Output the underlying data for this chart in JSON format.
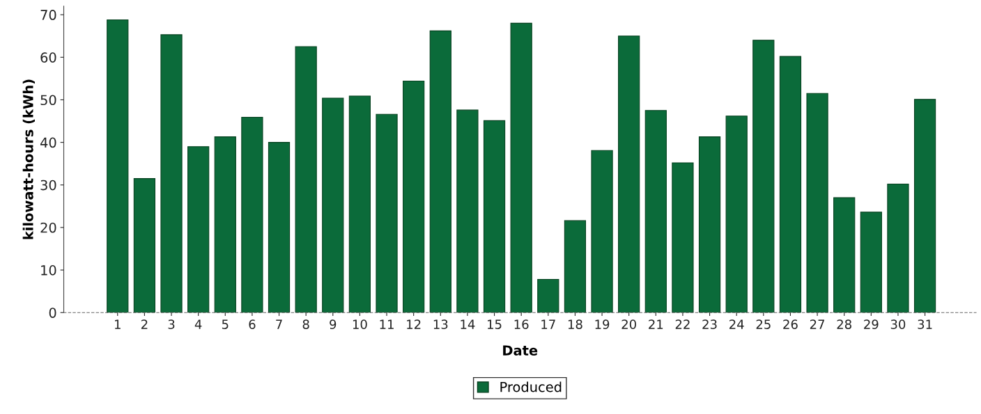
{
  "chart_data": {
    "type": "bar",
    "xlabel": "Date",
    "ylabel": "kilowatt-hours (kWh)",
    "categories": [
      "1",
      "2",
      "3",
      "4",
      "5",
      "6",
      "7",
      "8",
      "9",
      "10",
      "11",
      "12",
      "13",
      "14",
      "15",
      "16",
      "17",
      "18",
      "19",
      "20",
      "21",
      "22",
      "23",
      "24",
      "25",
      "26",
      "27",
      "28",
      "29",
      "30",
      "31"
    ],
    "series": [
      {
        "name": "Produced",
        "color": "#0b6b3a",
        "values": [
          68.8,
          31.5,
          65.3,
          39.0,
          41.3,
          45.9,
          40.0,
          62.5,
          50.4,
          50.9,
          46.6,
          54.4,
          66.2,
          47.6,
          45.1,
          68.0,
          7.8,
          21.6,
          38.1,
          65.0,
          47.5,
          35.2,
          41.3,
          46.2,
          64.0,
          60.2,
          51.5,
          27.0,
          23.6,
          30.2,
          50.1
        ]
      }
    ],
    "ylim": [
      0,
      72
    ],
    "yticks": [
      0,
      10,
      20,
      30,
      40,
      50,
      60,
      70
    ],
    "grid": false,
    "legend": "bottom"
  }
}
